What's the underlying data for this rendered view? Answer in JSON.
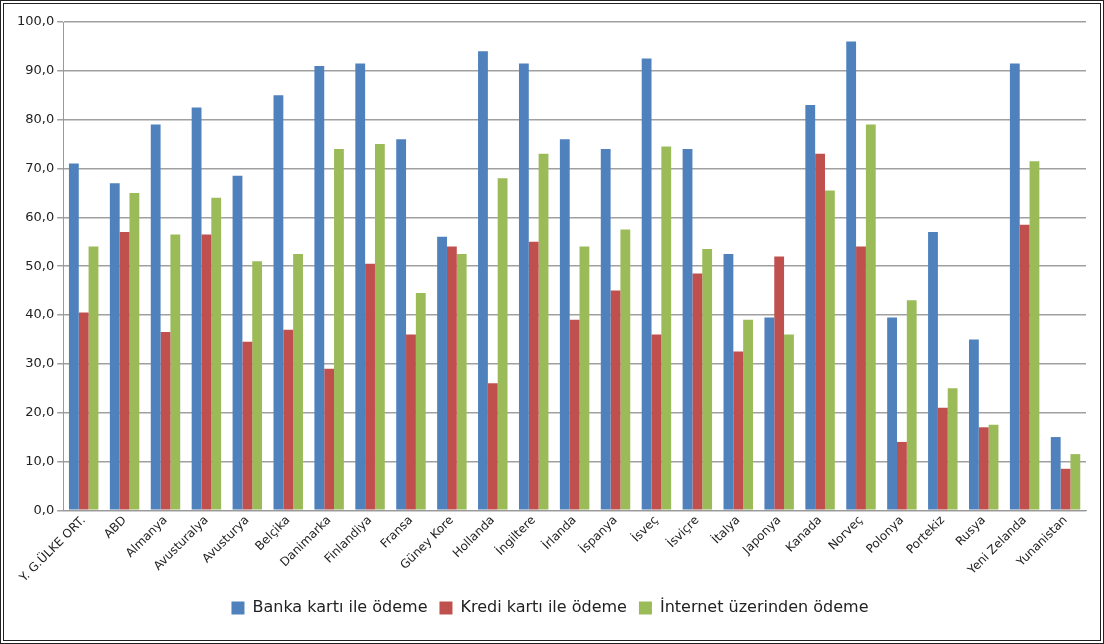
{
  "chart_data": {
    "type": "bar",
    "categories": [
      "Y. G.ÜLKE ORT.",
      "ABD",
      "Almanya",
      "Avusturalya",
      "Avusturya",
      "Belçika",
      "Danimarka",
      "Finlandiya",
      "Fransa",
      "Güney Kore",
      "Hollanda",
      "İngiltere",
      "İrlanda",
      "İspanya",
      "İsveç",
      "İsviçre",
      "İtalya",
      "Japonya",
      "Kanada",
      "Norveç",
      "Polonya",
      "Portekiz",
      "Rusya",
      "Yeni Zelanda",
      "Yunanistan"
    ],
    "series": [
      {
        "name": "Banka kartı ile ödeme",
        "color": "#4f81bd",
        "values": [
          71,
          67,
          79,
          82.5,
          68.5,
          85,
          91,
          91.5,
          76,
          56,
          94,
          91.5,
          76,
          74,
          92.5,
          74,
          52.5,
          39.5,
          83,
          96,
          39.5,
          57,
          35,
          91.5,
          15
        ]
      },
      {
        "name": "Kredi kartı ile ödeme",
        "color": "#c0504d",
        "values": [
          40.5,
          57,
          36.5,
          56.5,
          34.5,
          37,
          29,
          50.5,
          36,
          54,
          26,
          55,
          39,
          45,
          36,
          48.5,
          32.5,
          52,
          73,
          54,
          14,
          21,
          17,
          58.5,
          8.5
        ]
      },
      {
        "name": "İnternet üzerinden ödeme",
        "color": "#9bbb59",
        "values": [
          54,
          65,
          56.5,
          64,
          51,
          52.5,
          74,
          75,
          44.5,
          52.5,
          68,
          73,
          54,
          57.5,
          74.5,
          53.5,
          39,
          36,
          65.5,
          79,
          43,
          25,
          17.5,
          71.5,
          11.5
        ]
      }
    ],
    "ylim": [
      0,
      100
    ],
    "yticks": [
      {
        "value": 0,
        "label": "0,0"
      },
      {
        "value": 10,
        "label": "10,0"
      },
      {
        "value": 20,
        "label": "20,0"
      },
      {
        "value": 30,
        "label": "30,0"
      },
      {
        "value": 40,
        "label": "40,0"
      },
      {
        "value": 50,
        "label": "50,0"
      },
      {
        "value": 60,
        "label": "60,0"
      },
      {
        "value": 70,
        "label": "70,0"
      },
      {
        "value": 80,
        "label": "80,0"
      },
      {
        "value": 90,
        "label": "90,0"
      },
      {
        "value": 100,
        "label": "100,0"
      }
    ],
    "grid": "y",
    "legend": "bottom"
  }
}
